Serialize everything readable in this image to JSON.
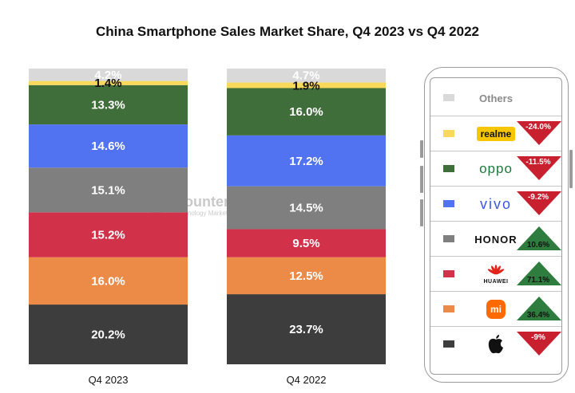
{
  "title": "China Smartphone Sales Market Share, Q4 2023 vs Q4 2022",
  "watermark": {
    "name": "Counterpoint",
    "tagline": "Technology Market Research"
  },
  "chart_data": {
    "type": "bar",
    "stacked": true,
    "categories": [
      "Q4 2023",
      "Q4 2022"
    ],
    "series": [
      {
        "name": "Apple",
        "color": "#3d3d3d",
        "values": [
          20.2,
          23.7
        ],
        "labels": [
          "20.2%",
          "23.7%"
        ]
      },
      {
        "name": "Xiaomi",
        "color": "#ec8b48",
        "values": [
          16.0,
          12.5
        ],
        "labels": [
          "16.0%",
          "12.5%"
        ]
      },
      {
        "name": "Huawei",
        "color": "#d1324a",
        "values": [
          15.2,
          9.5
        ],
        "labels": [
          "15.2%",
          "9.5%"
        ]
      },
      {
        "name": "Honor",
        "color": "#7f7f7f",
        "values": [
          15.1,
          14.5
        ],
        "labels": [
          "15.1%",
          "14.5%"
        ]
      },
      {
        "name": "vivo",
        "color": "#5173f1",
        "values": [
          14.6,
          17.2
        ],
        "labels": [
          "14.6%",
          "17.2%"
        ]
      },
      {
        "name": "OPPO",
        "color": "#3f6e3a",
        "values": [
          13.3,
          16.0
        ],
        "labels": [
          "13.3%",
          "16.0%"
        ]
      },
      {
        "name": "realme",
        "color": "#f8d95c",
        "values": [
          1.4,
          1.9
        ],
        "labels": [
          "1.4%",
          "1.9%"
        ]
      },
      {
        "name": "Others",
        "color": "#d9d9d9",
        "values": [
          4.2,
          4.7
        ],
        "labels": [
          "4.2%",
          "4.7%"
        ]
      }
    ],
    "ylim": [
      0,
      100
    ]
  },
  "legend": {
    "others_label": "Others",
    "items": [
      {
        "brand": "realme",
        "color": "#f8d95c",
        "change": "-24.0%",
        "direction": "down",
        "icon": "realme-logo"
      },
      {
        "brand": "oppo",
        "color": "#3f6e3a",
        "change": "-11.5%",
        "direction": "down",
        "icon": "oppo-logo"
      },
      {
        "brand": "vivo",
        "color": "#5173f1",
        "change": "-9.2%",
        "direction": "down",
        "icon": "vivo-logo"
      },
      {
        "brand": "HONOR",
        "color": "#7f7f7f",
        "change": "10.6%",
        "direction": "up",
        "icon": "honor-logo"
      },
      {
        "brand": "HUAWEI",
        "color": "#d1324a",
        "change": "71.1%",
        "direction": "up",
        "icon": "huawei-logo"
      },
      {
        "brand": "mi",
        "color": "#ec8b48",
        "change": "36.4%",
        "direction": "up",
        "icon": "xiaomi-logo"
      },
      {
        "brand": "Apple",
        "color": "#3d3d3d",
        "change": "-9%",
        "direction": "down",
        "icon": "apple-logo"
      }
    ],
    "others_color": "#d9d9d9",
    "down_color": "#c8202f",
    "up_color": "#2e7d3e"
  }
}
